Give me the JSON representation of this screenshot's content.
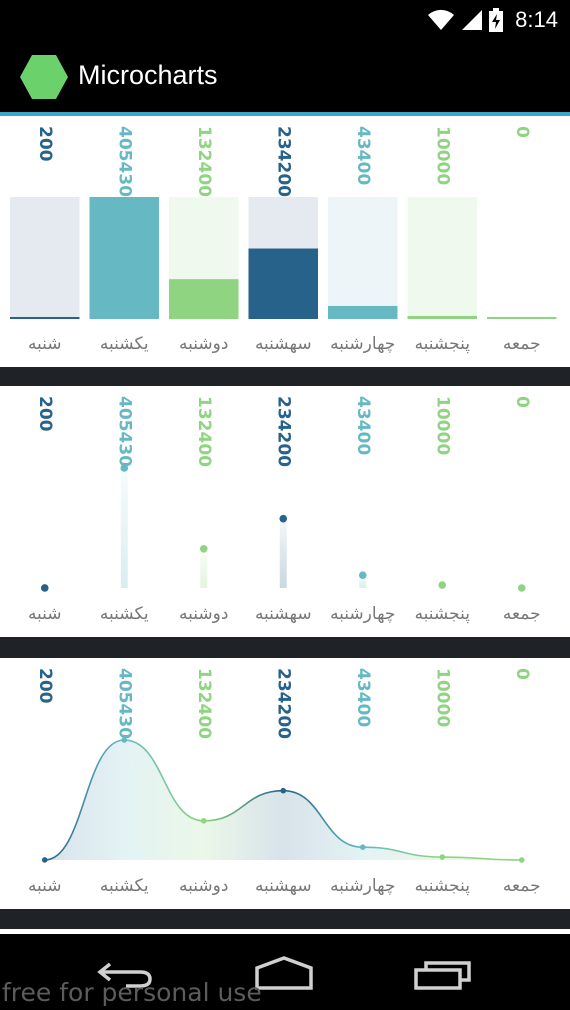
{
  "app": {
    "title": "Microcharts",
    "status_time": "8:14",
    "watermark": "free for personal use",
    "logo_color": "#6bd26b"
  },
  "colors": {
    "dark_blue": "#26628a",
    "teal": "#66b9c3",
    "light_green": "#8fd480",
    "bar_bg": "#e5eaf0",
    "label_gray": "#777777"
  },
  "chart_data": [
    {
      "type": "bar",
      "categories": [
        "شنبه",
        "یکشنبه",
        "دوشنبه",
        "سهشنبه",
        "چهارشنبه",
        "پنجشنبه",
        "جمعه"
      ],
      "values": [
        200,
        405430,
        132400,
        234200,
        43400,
        10000,
        0
      ],
      "value_labels": [
        "200",
        "405430",
        "132400",
        "234200",
        "43400",
        "10000",
        "0"
      ],
      "colors": [
        "#26628a",
        "#66b9c3",
        "#8fd480",
        "#26628a",
        "#66b9c3",
        "#8fd480",
        "#8fd480"
      ],
      "ylim": [
        0,
        405430
      ]
    },
    {
      "type": "scatter",
      "categories": [
        "شنبه",
        "یکشنبه",
        "دوشنبه",
        "سهشنبه",
        "چهارشنبه",
        "پنجشنبه",
        "جمعه"
      ],
      "values": [
        200,
        405430,
        132400,
        234200,
        43400,
        10000,
        0
      ],
      "value_labels": [
        "200",
        "405430",
        "132400",
        "234200",
        "43400",
        "10000",
        "0"
      ],
      "colors": [
        "#26628a",
        "#66b9c3",
        "#8fd480",
        "#26628a",
        "#66b9c3",
        "#8fd480",
        "#8fd480"
      ],
      "ylim": [
        0,
        405430
      ]
    },
    {
      "type": "area",
      "categories": [
        "شنبه",
        "یکشنبه",
        "دوشنبه",
        "سهشنبه",
        "چهارشنبه",
        "پنجشنبه",
        "جمعه"
      ],
      "values": [
        200,
        405430,
        132400,
        234200,
        43400,
        10000,
        0
      ],
      "value_labels": [
        "200",
        "405430",
        "132400",
        "234200",
        "43400",
        "10000",
        "0"
      ],
      "colors": [
        "#26628a",
        "#66b9c3",
        "#8fd480",
        "#26628a",
        "#66b9c3",
        "#8fd480",
        "#8fd480"
      ],
      "ylim": [
        0,
        405430
      ]
    }
  ]
}
